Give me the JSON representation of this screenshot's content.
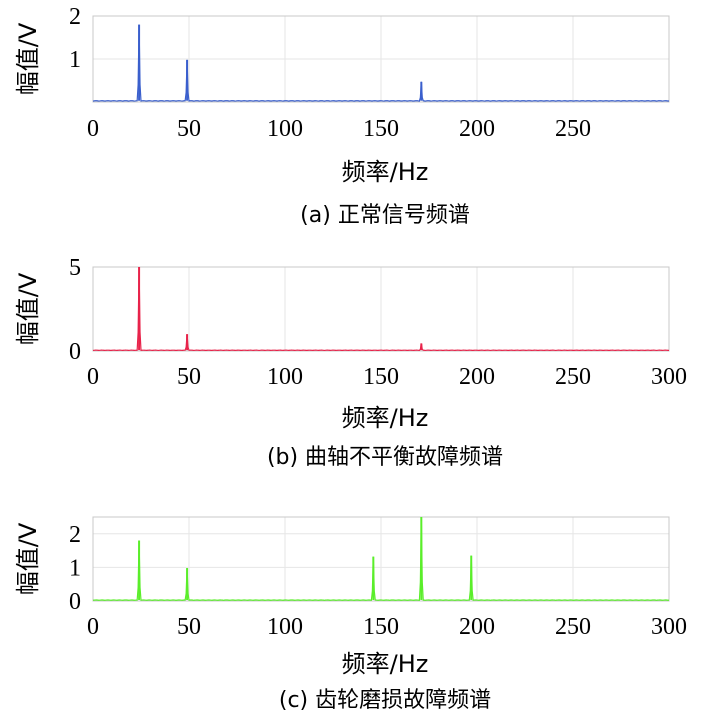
{
  "chart_data": [
    {
      "type": "line",
      "xlabel": "频率/Hz",
      "ylabel": "幅值/V",
      "caption": "(a) 正常信号频谱",
      "xlim": [
        0,
        300
      ],
      "ylim": [
        0,
        2
      ],
      "xticks": [
        "0",
        "50",
        "100",
        "150",
        "200",
        "250"
      ],
      "yticks": [
        "1",
        "2"
      ],
      "grid": true,
      "color": "#3a5fcd",
      "baseline": 0.03,
      "peaks": [
        {
          "x": 24,
          "y": 1.8
        },
        {
          "x": 49,
          "y": 0.98
        },
        {
          "x": 171,
          "y": 0.47
        }
      ]
    },
    {
      "type": "line",
      "xlabel": "频率/Hz",
      "ylabel": "幅值/V",
      "caption": "(b) 曲轴不平衡故障频谱",
      "xlim": [
        0,
        300
      ],
      "ylim": [
        0,
        5
      ],
      "xticks": [
        "0",
        "50",
        "100",
        "150",
        "200",
        "250",
        "300"
      ],
      "yticks": [
        "0",
        "5"
      ],
      "grid": true,
      "color": "#e8234a",
      "baseline": 0.05,
      "peaks": [
        {
          "x": 24,
          "y": 5.0
        },
        {
          "x": 49,
          "y": 1.0
        },
        {
          "x": 171,
          "y": 0.45
        }
      ]
    },
    {
      "type": "line",
      "xlabel": "频率/Hz",
      "ylabel": "幅值/V",
      "caption": "(c) 齿轮磨损故障频谱",
      "xlim": [
        0,
        300
      ],
      "ylim": [
        0,
        2.5
      ],
      "xticks": [
        "0",
        "50",
        "100",
        "150",
        "200",
        "250",
        "300"
      ],
      "yticks": [
        "0",
        "1",
        "2"
      ],
      "grid": true,
      "color": "#5aee2a",
      "baseline": 0.03,
      "peaks": [
        {
          "x": 24,
          "y": 1.8
        },
        {
          "x": 49,
          "y": 0.98
        },
        {
          "x": 146,
          "y": 1.32
        },
        {
          "x": 171,
          "y": 2.5
        },
        {
          "x": 197,
          "y": 1.35
        }
      ]
    }
  ]
}
